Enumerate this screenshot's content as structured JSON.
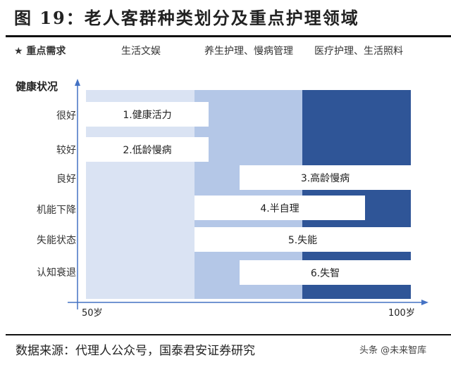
{
  "title": "图 19：老人客群种类划分及重点护理领域",
  "needs": {
    "label": "★ 重点需求",
    "items": [
      "生活文娱",
      "养生护理、慢病管理",
      "医疗护理、生活照料"
    ]
  },
  "y_axis_label": "健康状况",
  "rows": [
    "很好",
    "较好",
    "良好",
    "机能下降",
    "失能状态",
    "认知衰退"
  ],
  "segments": [
    "1.健康活力",
    "2.低龄慢病",
    "3.高龄慢病",
    "4.半自理",
    "5.失能",
    "6.失智"
  ],
  "x_axis": {
    "start": "50岁",
    "end": "100岁"
  },
  "colors": {
    "light": "#dae3f3",
    "mid": "#b4c7e7",
    "dark": "#2f5597"
  },
  "source": "数据来源：代理人公众号，国泰君安证券研究",
  "watermark": "头条 @未来智库"
}
